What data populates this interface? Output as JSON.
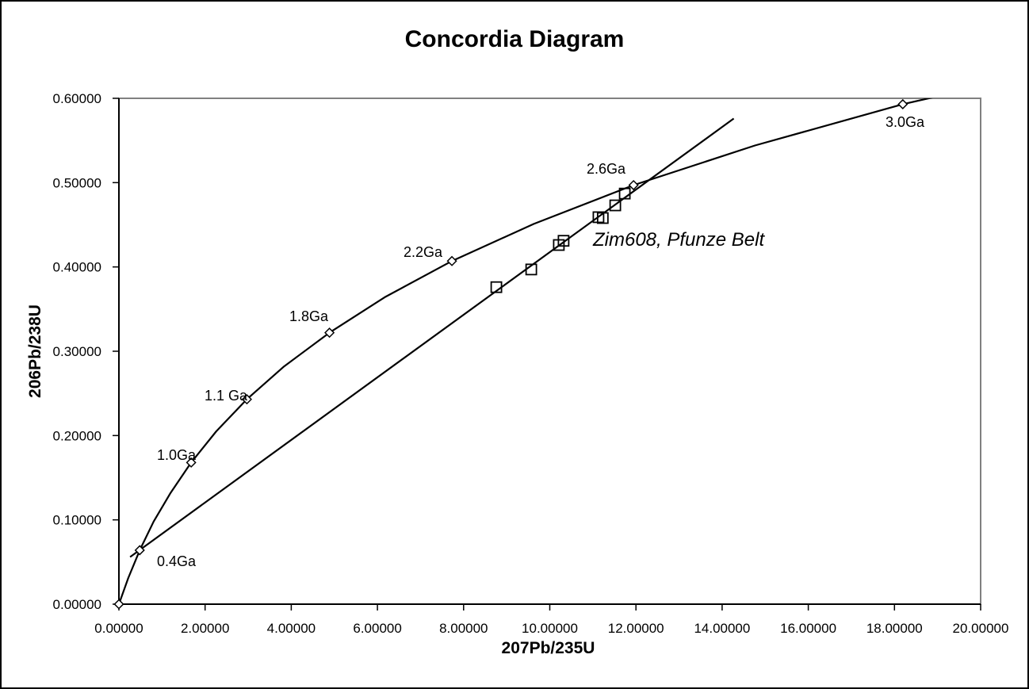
{
  "title": "Concordia Diagram",
  "annotation": "Zim608, Pfunze Belt",
  "axes": {
    "x": {
      "label": "207Pb/235U",
      "range": [
        0,
        20
      ],
      "tick_step": 2,
      "tick_labels": [
        "0.00000",
        "2.00000",
        "4.00000",
        "6.00000",
        "8.00000",
        "10.00000",
        "12.00000",
        "14.00000",
        "16.00000",
        "18.00000",
        "20.00000"
      ]
    },
    "y": {
      "label": "206Pb/238U",
      "range": [
        0,
        0.6
      ],
      "tick_step": 0.1,
      "tick_labels": [
        "0.00000",
        "0.10000",
        "0.20000",
        "0.30000",
        "0.40000",
        "0.50000",
        "0.60000"
      ]
    }
  },
  "colors": {
    "background": "#ffffff",
    "outer_border": "#000000",
    "plot_border": "#808080",
    "series_line": "#000000",
    "marker_stroke": "#000000",
    "marker_fill": "#ffffff",
    "text": "#000000"
  },
  "chart_data": {
    "type": "scatter",
    "title": "Concordia Diagram",
    "xlabel": "207Pb/235U",
    "ylabel": "206Pb/238U",
    "xlim": [
      0,
      20
    ],
    "ylim": [
      0,
      0.6
    ],
    "grid": false,
    "legend": "none",
    "series": [
      {
        "name": "concordia-curve",
        "marker": "diamond",
        "line": "smooth",
        "marker_points": [
          [
            0.0,
            0.0
          ],
          [
            0.483,
            0.064
          ],
          [
            1.677,
            0.168
          ],
          [
            2.97,
            0.243
          ],
          [
            4.887,
            0.322
          ],
          [
            7.729,
            0.407
          ],
          [
            11.944,
            0.497
          ],
          [
            18.193,
            0.593
          ]
        ],
        "curve_points": [
          [
            0.0,
            0.0
          ],
          [
            0.218,
            0.031
          ],
          [
            0.483,
            0.064
          ],
          [
            0.806,
            0.098
          ],
          [
            1.199,
            0.132
          ],
          [
            1.677,
            0.168
          ],
          [
            2.26,
            0.205
          ],
          [
            2.97,
            0.243
          ],
          [
            3.834,
            0.282
          ],
          [
            4.887,
            0.322
          ],
          [
            6.169,
            0.364
          ],
          [
            7.729,
            0.407
          ],
          [
            9.63,
            0.451
          ],
          [
            11.944,
            0.497
          ],
          [
            14.762,
            0.544
          ],
          [
            18.193,
            0.593
          ],
          [
            19.4,
            0.607
          ]
        ]
      },
      {
        "name": "discordia-line",
        "marker": "none",
        "line": "straight",
        "points": [
          [
            0.26,
            0.056
          ],
          [
            14.27,
            0.576
          ]
        ]
      },
      {
        "name": "sample-analyses",
        "marker": "square",
        "line": "none",
        "points": [
          [
            8.76,
            0.376
          ],
          [
            9.57,
            0.397
          ],
          [
            10.21,
            0.426
          ],
          [
            10.32,
            0.431
          ],
          [
            11.13,
            0.459
          ],
          [
            11.23,
            0.458
          ],
          [
            11.52,
            0.473
          ],
          [
            11.74,
            0.487
          ]
        ]
      }
    ],
    "age_labels": [
      {
        "text": "0.4Ga",
        "px": [
          196,
          712
        ]
      },
      {
        "text": "1.0Ga",
        "px": [
          196,
          578
        ]
      },
      {
        "text": "1.1 Ga",
        "px": [
          256,
          503
        ]
      },
      {
        "text": "1.8Ga",
        "px": [
          363,
          403
        ]
      },
      {
        "text": "2.2Ga",
        "px": [
          507,
          322
        ]
      },
      {
        "text": "2.6Ga",
        "px": [
          738,
          217
        ]
      },
      {
        "text": "3.0Ga",
        "px": [
          1115,
          158
        ]
      }
    ]
  }
}
